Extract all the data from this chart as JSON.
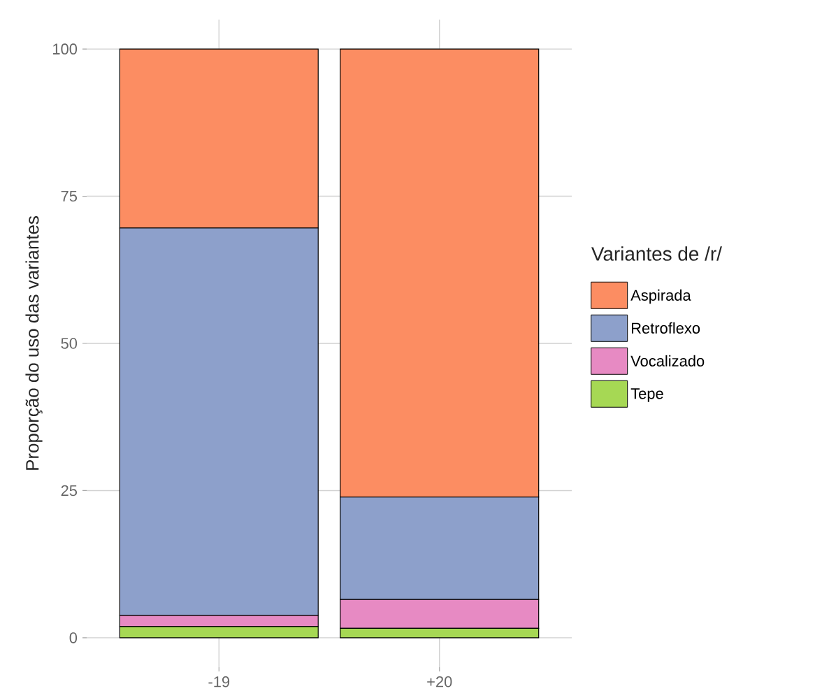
{
  "chart_data": {
    "type": "bar",
    "stacked": true,
    "categories": [
      "-19",
      "+20"
    ],
    "ylabel": "Proporção do uso das variantes",
    "legend_title": "Variantes de /r/",
    "series": [
      {
        "name": "Tepe",
        "color": "#a6d854",
        "values": [
          1.9,
          1.6
        ]
      },
      {
        "name": "Vocalizado",
        "color": "#e78ac3",
        "values": [
          1.9,
          4.9
        ]
      },
      {
        "name": "Retroflexo",
        "color": "#8da0cb",
        "values": [
          65.8,
          17.4
        ]
      },
      {
        "name": "Aspirada",
        "color": "#fc8d62",
        "values": [
          30.4,
          76.1
        ]
      }
    ],
    "ylim": [
      -5,
      105
    ],
    "yticks": [
      0,
      25,
      50,
      75,
      100
    ],
    "grid": true,
    "legend": "right"
  }
}
